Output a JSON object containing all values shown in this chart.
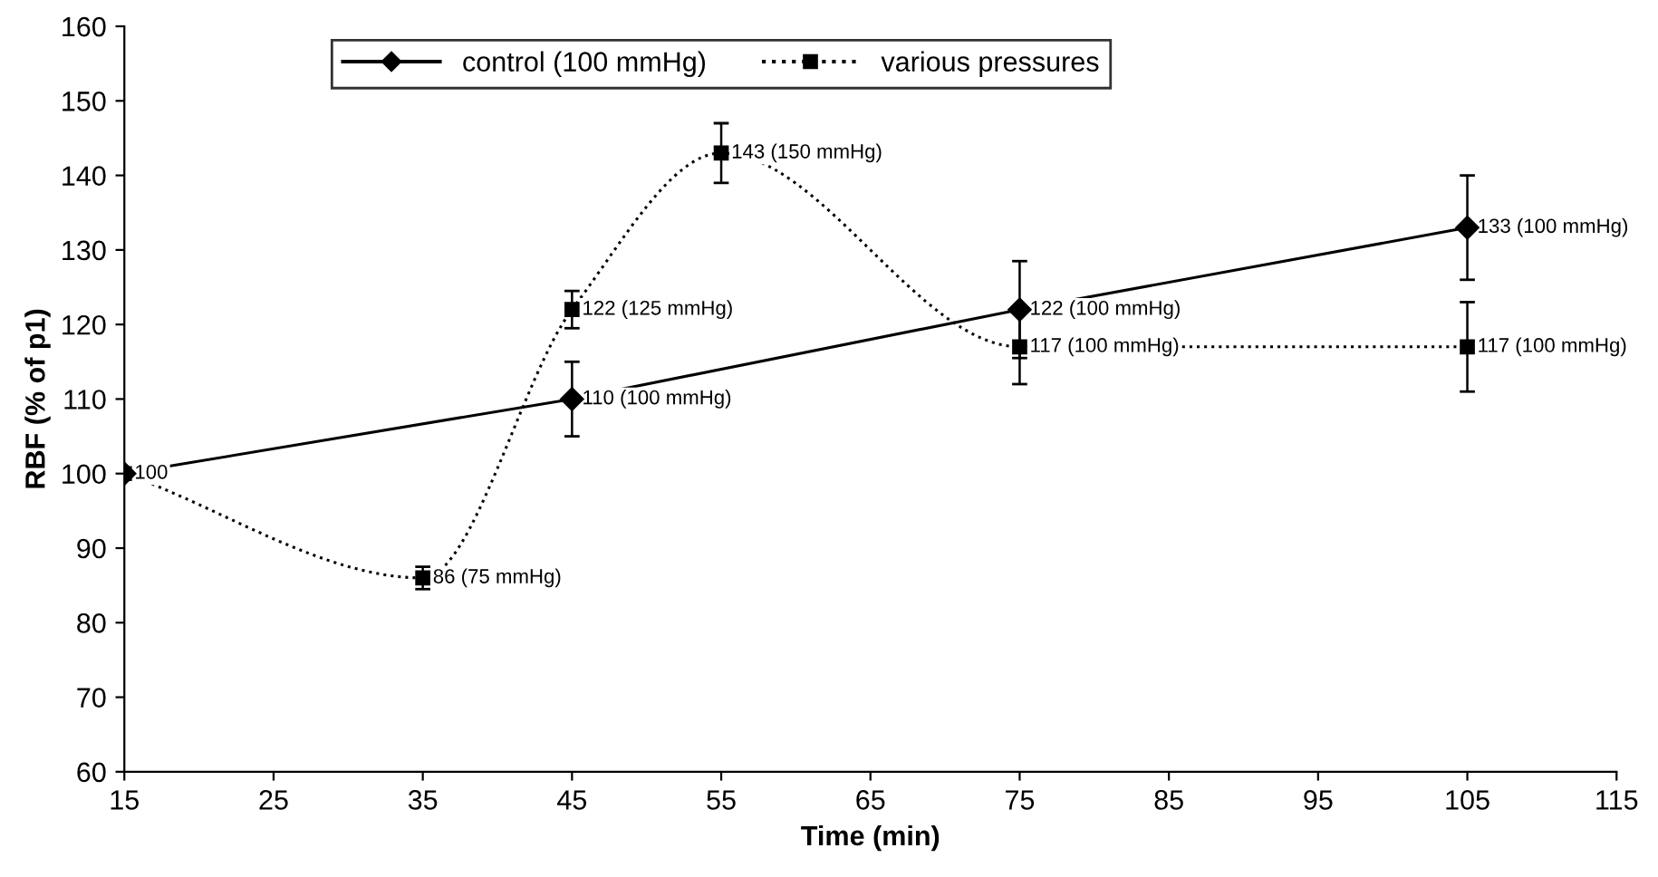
{
  "chart_data": {
    "type": "line",
    "xlabel": "Time (min)",
    "ylabel": "RBF (% of p1)",
    "xlim": [
      15,
      115
    ],
    "xticks": [
      15,
      25,
      35,
      45,
      55,
      65,
      75,
      85,
      95,
      105,
      115
    ],
    "ylim": [
      60,
      160
    ],
    "yticks": [
      60,
      70,
      80,
      90,
      100,
      110,
      120,
      130,
      140,
      150,
      160
    ],
    "grid": false,
    "legend": "top",
    "series": [
      {
        "name": "control (100 mmHg)",
        "color": "#000000",
        "marker": "diamond",
        "line_style": "solid",
        "x": [
          15,
          45,
          75,
          105
        ],
        "values": [
          100,
          110,
          122,
          133
        ],
        "errors": [
          null,
          5,
          6.5,
          7
        ],
        "value_labels": [
          null,
          "110 (100 mmHg)",
          "122 (100 mmHg)",
          "133 (100 mmHg)"
        ]
      },
      {
        "name": "various pressures",
        "color": "#000000",
        "marker": "square",
        "line_style": "dotted",
        "x": [
          15,
          35,
          45,
          55,
          75,
          105
        ],
        "values": [
          100,
          86,
          122,
          143,
          117,
          117
        ],
        "errors": [
          null,
          1.5,
          2.5,
          4,
          5,
          6
        ],
        "value_labels": [
          "100",
          "86 (75 mmHg)",
          "122 (125 mmHg)",
          "143 (150 mmHg)",
          "117 (100 mmHg)",
          "117 (100 mmHg)"
        ]
      }
    ]
  }
}
